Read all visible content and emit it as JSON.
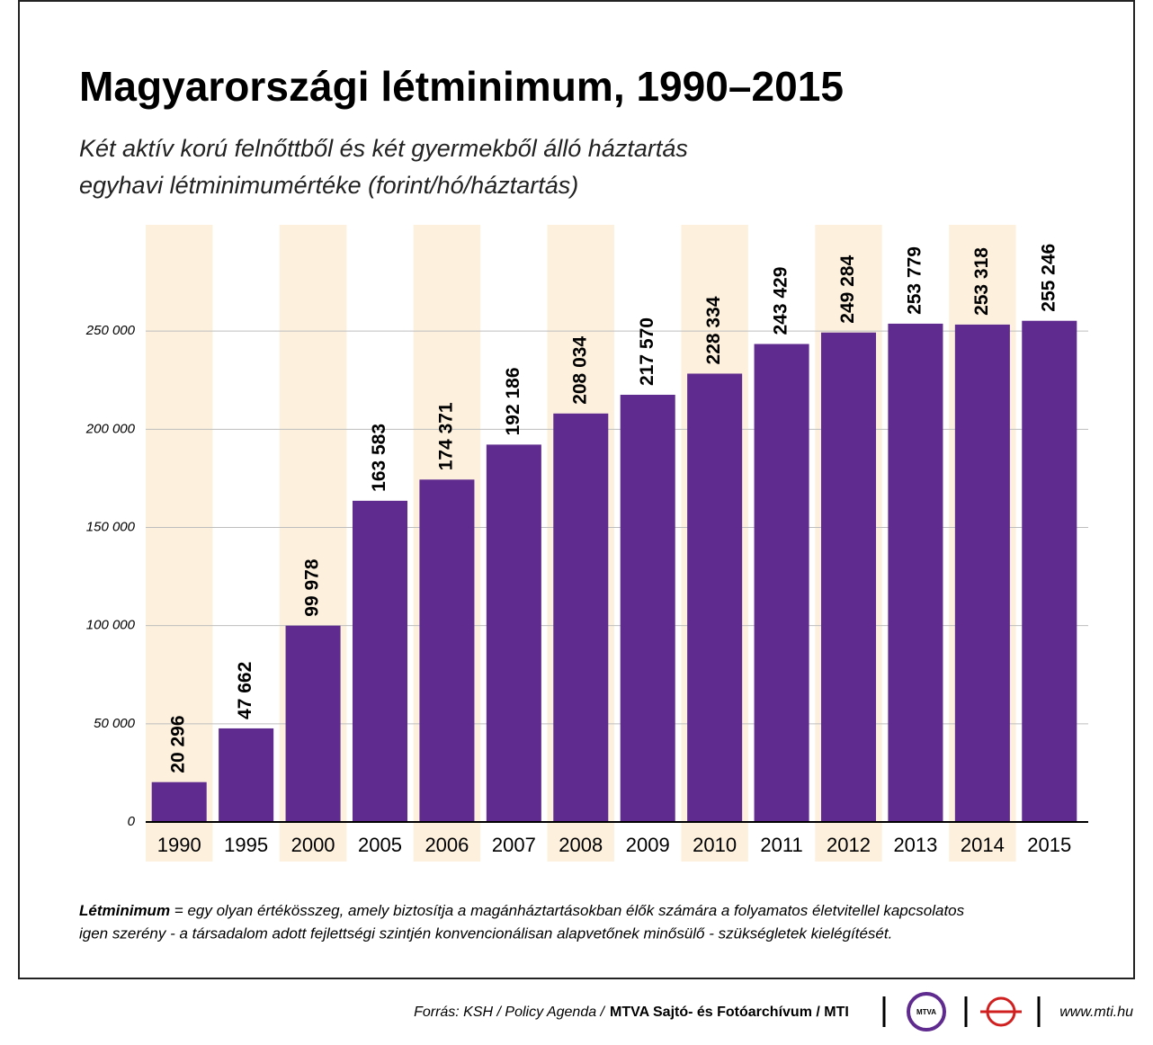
{
  "chart_data": {
    "type": "bar",
    "title": "Magyarországi létminimum, 1990–2015",
    "subtitle": [
      "Két aktív korú felnőttből és két gyermekből álló háztartás",
      "egyhavi létminimumértéke (forint/hó/háztartás)"
    ],
    "categories": [
      "1990",
      "1995",
      "2000",
      "2005",
      "2006",
      "2007",
      "2008",
      "2009",
      "2010",
      "2011",
      "2012",
      "2013",
      "2014",
      "2015"
    ],
    "values": [
      20296,
      47662,
      99978,
      163583,
      174371,
      192186,
      208034,
      217570,
      228334,
      243429,
      249284,
      253779,
      253318,
      255246
    ],
    "value_labels": [
      "20 296",
      "47 662",
      "99 978",
      "163 583",
      "174 371",
      "192 186",
      "208 034",
      "217 570",
      "228 334",
      "243 429",
      "249 284",
      "253 779",
      "253 318",
      "255 246"
    ],
    "color": "#5f2b8e",
    "ylim": [
      0,
      300000
    ],
    "yticks": [
      0,
      {
        "value": 50000,
        "label": "50 000"
      },
      {
        "value": 100000,
        "label": "100 000"
      },
      {
        "value": 150000,
        "label": "150 000"
      },
      {
        "value": 200000,
        "label": "200 000"
      },
      {
        "value": 250000,
        "label": "250 000"
      }
    ],
    "grid": true
  },
  "footnote": {
    "term": "Létminimum",
    "lines": [
      "= egy olyan értékösszeg, amely biztosítja a magánháztartásokban élők számára a folyamatos életvitellel kapcsolatos",
      "igen szerény - a  társadalom adott fejlettségi szintjén konvencionálisan alapvetőnek minősülő - szükségletek kielégítését."
    ]
  },
  "source": {
    "text": "Forrás: KSH / Policy Agenda /",
    "agency": "MTVA Sajtó- és Fotóarchívum / MTI",
    "logo": "MTVA",
    "url": "www.mti.hu"
  }
}
